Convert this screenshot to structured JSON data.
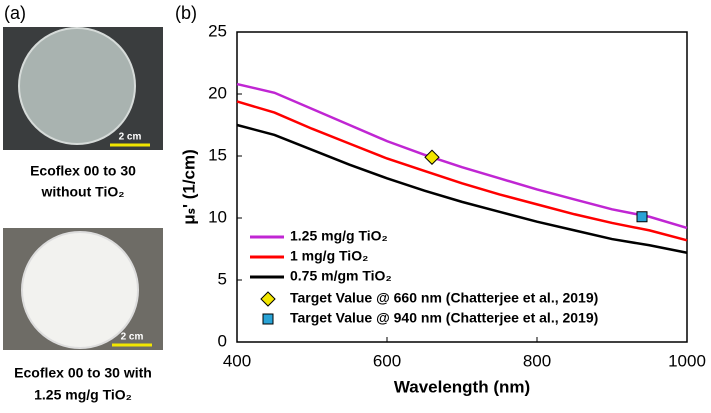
{
  "panel_a": {
    "label": "(a)",
    "photos": [
      {
        "scale_bar": "2 cm",
        "caption": [
          "Ecoflex 00 to 30",
          "without TiO₂"
        ]
      },
      {
        "scale_bar": "2 cm",
        "caption": [
          "Ecoflex 00 to 30 with",
          "1.25 mg/g TiO₂"
        ]
      }
    ]
  },
  "panel_label": "(b)",
  "chart_data": {
    "type": "line",
    "xlabel": "Wavelength (nm)",
    "ylabel": "μₛ' (1/cm)",
    "x": [
      400,
      450,
      500,
      550,
      600,
      650,
      700,
      750,
      800,
      850,
      900,
      950,
      1000
    ],
    "xlim": [
      400,
      1000
    ],
    "xticks": [
      400,
      600,
      800,
      1000
    ],
    "ylim": [
      0,
      25
    ],
    "yticks": [
      0,
      5,
      10,
      15,
      20,
      25
    ],
    "legend": "lower-left",
    "series": [
      {
        "name": "1.25 mg/g TiO₂",
        "color": "#c026d3",
        "values": [
          20.8,
          20.1,
          18.8,
          17.5,
          16.2,
          15.1,
          14.1,
          13.2,
          12.3,
          11.5,
          10.7,
          10.1,
          9.2
        ]
      },
      {
        "name": "1 mg/g TiO₂",
        "color": "#ff0000",
        "values": [
          19.4,
          18.5,
          17.2,
          16.0,
          14.8,
          13.8,
          12.8,
          11.9,
          11.1,
          10.3,
          9.6,
          9.0,
          8.2
        ]
      },
      {
        "name": "0.75 m/gm TiO₂",
        "color": "#000000",
        "values": [
          17.5,
          16.7,
          15.5,
          14.3,
          13.2,
          12.2,
          11.3,
          10.5,
          9.7,
          9.0,
          8.3,
          7.8,
          7.2
        ]
      },
      {
        "name": "Target Value @ 660 nm (Chatterjee et al., 2019)",
        "color": "#f2e600",
        "marker": "diamond",
        "x": [
          660
        ],
        "values": [
          14.9
        ]
      },
      {
        "name": "Target Value @ 940 nm (Chatterjee et al., 2019)",
        "color": "#29a3d6",
        "marker": "square",
        "x": [
          940
        ],
        "values": [
          10.1
        ]
      }
    ]
  }
}
